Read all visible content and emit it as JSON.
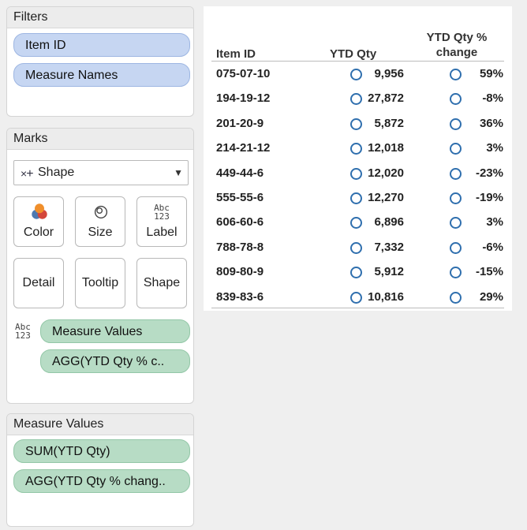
{
  "filters": {
    "title": "Filters",
    "items": [
      "Item ID",
      "Measure Names"
    ]
  },
  "marks": {
    "title": "Marks",
    "mark_type": "Shape",
    "buttons": [
      "Color",
      "Size",
      "Label",
      "Detail",
      "Tooltip",
      "Shape"
    ],
    "label_icon_text": "Abc\n123",
    "fields": [
      "Measure Values",
      "AGG(YTD Qty % c.."
    ]
  },
  "measure_values": {
    "title": "Measure Values",
    "items": [
      "SUM(YTD Qty)",
      "AGG(YTD Qty % chang.."
    ]
  },
  "table": {
    "columns": [
      "Item ID",
      "YTD Qty",
      "YTD Qty %\nchange"
    ],
    "rows": [
      {
        "id": "075-07-10",
        "qty": "9,956",
        "pct": "59%"
      },
      {
        "id": "194-19-12",
        "qty": "27,872",
        "pct": "-8%"
      },
      {
        "id": "201-20-9",
        "qty": "5,872",
        "pct": "36%"
      },
      {
        "id": "214-21-12",
        "qty": "12,018",
        "pct": "3%"
      },
      {
        "id": "449-44-6",
        "qty": "12,020",
        "pct": "-23%"
      },
      {
        "id": "555-55-6",
        "qty": "12,270",
        "pct": "-19%"
      },
      {
        "id": "606-60-6",
        "qty": "6,896",
        "pct": "3%"
      },
      {
        "id": "788-78-8",
        "qty": "7,332",
        "pct": "-6%"
      },
      {
        "id": "809-80-9",
        "qty": "5,912",
        "pct": "-15%"
      },
      {
        "id": "839-83-6",
        "qty": "10,816",
        "pct": "29%"
      }
    ],
    "mark_color": "#2f6fae"
  }
}
